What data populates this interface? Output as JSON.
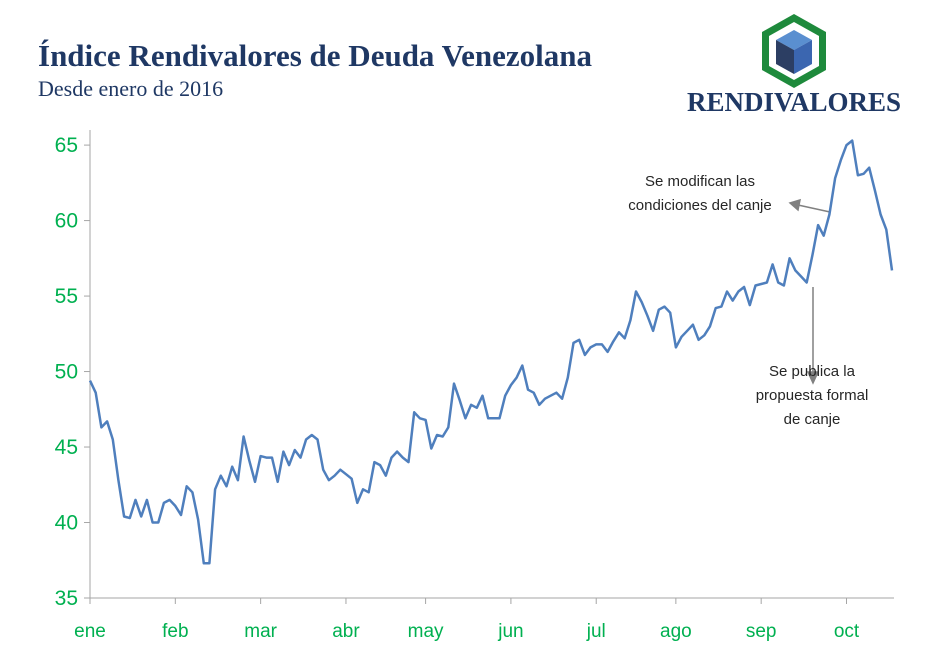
{
  "chart_data": {
    "type": "line",
    "title": "Índice Rendivalores de Deuda Venezolana",
    "subtitle": "Desde enero de 2016",
    "logo": "RENDIVALORES",
    "color": "#4f7fbd",
    "tick_color": "#00b050",
    "ylim": [
      35,
      66
    ],
    "yticks": [
      35,
      40,
      45,
      50,
      55,
      60,
      65
    ],
    "grid": false,
    "xticks": [
      "ene",
      "feb",
      "mar",
      "abr",
      "may",
      "jun",
      "jul",
      "ago",
      "sep",
      "oct"
    ],
    "x": [
      "ene",
      "ene",
      "ene",
      "ene",
      "ene",
      "ene",
      "ene",
      "ene",
      "ene",
      "ene",
      "ene",
      "ene",
      "ene",
      "ene",
      "ene",
      "feb",
      "feb",
      "feb",
      "feb",
      "feb",
      "feb",
      "feb",
      "feb",
      "feb",
      "feb",
      "feb",
      "feb",
      "feb",
      "feb",
      "feb",
      "mar",
      "mar",
      "mar",
      "mar",
      "mar",
      "mar",
      "mar",
      "mar",
      "mar",
      "mar",
      "mar",
      "mar",
      "mar",
      "mar",
      "mar",
      "abr",
      "abr",
      "abr",
      "abr",
      "abr",
      "abr",
      "abr",
      "abr",
      "abr",
      "abr",
      "abr",
      "abr",
      "abr",
      "abr",
      "may",
      "may",
      "may",
      "may",
      "may",
      "may",
      "may",
      "may",
      "may",
      "may",
      "may",
      "may",
      "may",
      "may",
      "may",
      "jun",
      "jun",
      "jun",
      "jun",
      "jun",
      "jun",
      "jun",
      "jun",
      "jun",
      "jun",
      "jun",
      "jun",
      "jun",
      "jun",
      "jun",
      "jul",
      "jul",
      "jul",
      "jul",
      "jul",
      "jul",
      "jul",
      "jul",
      "jul",
      "jul",
      "jul",
      "jul",
      "jul",
      "jul",
      "ago",
      "ago",
      "ago",
      "ago",
      "ago",
      "ago",
      "ago",
      "ago",
      "ago",
      "ago",
      "ago",
      "ago",
      "ago",
      "ago",
      "ago",
      "sep",
      "sep",
      "sep",
      "sep",
      "sep",
      "sep",
      "sep",
      "sep",
      "sep",
      "sep",
      "sep",
      "sep",
      "sep",
      "sep",
      "sep",
      "oct",
      "oct",
      "oct",
      "oct",
      "oct",
      "oct",
      "oct",
      "oct",
      "oct"
    ],
    "values": [
      49.4,
      48.6,
      46.3,
      46.7,
      45.5,
      42.8,
      40.4,
      40.3,
      41.5,
      40.4,
      41.5,
      40.0,
      40.0,
      41.3,
      41.5,
      41.1,
      40.5,
      42.4,
      42.0,
      40.2,
      37.3,
      37.3,
      42.2,
      43.1,
      42.4,
      43.7,
      42.8,
      45.7,
      44.1,
      42.7,
      44.4,
      44.3,
      44.3,
      42.7,
      44.7,
      43.8,
      44.8,
      44.3,
      45.5,
      45.8,
      45.5,
      43.5,
      42.8,
      43.1,
      43.5,
      43.2,
      42.9,
      41.3,
      42.2,
      42.0,
      44.0,
      43.8,
      43.1,
      44.3,
      44.7,
      44.3,
      44.0,
      47.3,
      46.9,
      46.8,
      44.9,
      45.8,
      45.7,
      46.3,
      49.2,
      48.1,
      46.9,
      47.8,
      47.6,
      48.4,
      46.9,
      46.9,
      46.9,
      48.4,
      49.1,
      49.6,
      50.4,
      48.8,
      48.6,
      47.8,
      48.2,
      48.4,
      48.6,
      48.2,
      49.6,
      51.9,
      52.1,
      51.1,
      51.6,
      51.8,
      51.8,
      51.3,
      52.0,
      52.6,
      52.2,
      53.4,
      55.3,
      54.6,
      53.7,
      52.7,
      54.1,
      54.3,
      53.9,
      51.6,
      52.3,
      52.7,
      53.1,
      52.1,
      52.4,
      53.0,
      54.2,
      54.3,
      55.3,
      54.7,
      55.3,
      55.6,
      54.4,
      55.7,
      55.8,
      55.9,
      57.1,
      55.9,
      55.7,
      57.5,
      56.7,
      56.3,
      55.9,
      57.7,
      59.7,
      59.0,
      60.4,
      62.8,
      64.0,
      65.0,
      65.3,
      63.0,
      63.1,
      63.5,
      62.0,
      60.4,
      59.4,
      56.7
    ],
    "annotations": [
      {
        "lines": [
          "Se modifican las",
          "condiciones del canje"
        ]
      },
      {
        "lines": [
          "Se publica la",
          "propuesta formal",
          "de canje"
        ]
      }
    ]
  }
}
